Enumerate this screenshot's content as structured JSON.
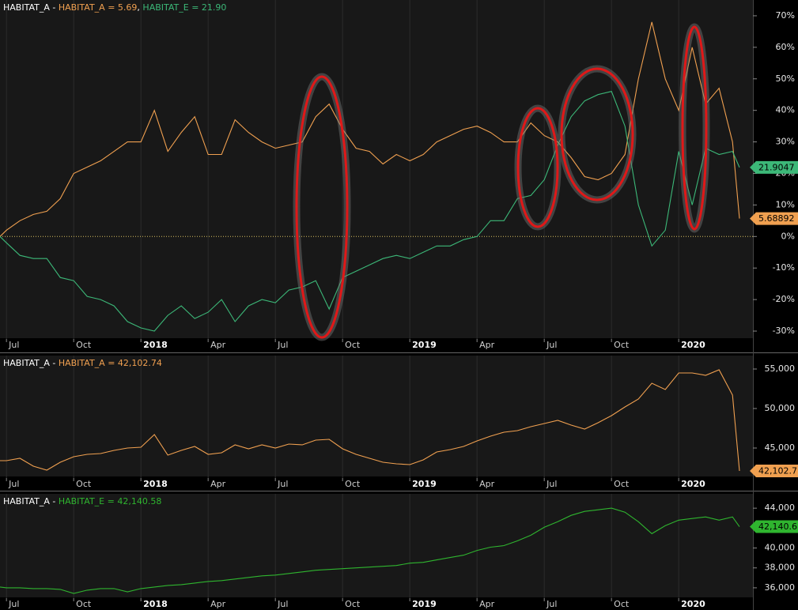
{
  "chart_data": [
    {
      "type": "line",
      "legend_prefix": "HABITAT_A - ",
      "legend_separator": ", ",
      "zero_line": true,
      "x": [
        2017.476,
        2017.5,
        2017.55,
        2017.6,
        2017.65,
        2017.7,
        2017.75,
        2017.8,
        2017.85,
        2017.9,
        2017.95,
        2018,
        2018.05,
        2018.1,
        2018.15,
        2018.2,
        2018.25,
        2018.3,
        2018.35,
        2018.4,
        2018.45,
        2018.5,
        2018.55,
        2018.6,
        2018.65,
        2018.7,
        2018.75,
        2018.8,
        2018.85,
        2018.9,
        2018.95,
        2019,
        2019.05,
        2019.1,
        2019.15,
        2019.2,
        2019.25,
        2019.3,
        2019.35,
        2019.4,
        2019.45,
        2019.5,
        2019.55,
        2019.6,
        2019.65,
        2019.7,
        2019.75,
        2019.8,
        2019.85,
        2019.9,
        2019.95,
        2020,
        2020.05,
        2020.1,
        2020.15,
        2020.2,
        2020.226
      ],
      "series": [
        {
          "name": "HABITAT_A = 5.69",
          "color": "#f0a050",
          "value_label": "5.68892",
          "values": [
            0,
            2,
            5,
            7,
            8,
            12,
            20,
            22,
            24,
            27,
            30,
            30,
            40,
            27,
            33,
            38,
            26,
            26,
            37,
            33,
            30,
            28,
            29,
            30,
            38,
            42,
            34,
            28,
            27,
            23,
            26,
            24,
            26,
            30,
            32,
            34,
            35,
            33,
            30,
            30,
            36,
            32,
            30,
            25,
            19,
            18,
            20,
            26,
            50,
            68,
            50,
            40,
            60,
            42,
            47,
            30,
            5.68892
          ]
        },
        {
          "name": "HABITAT_E = 21.90",
          "color": "#3cb878",
          "value_label": "21.9047",
          "values": [
            0,
            -2,
            -6,
            -7,
            -7,
            -13,
            -14,
            -19,
            -20,
            -22,
            -27,
            -29,
            -30,
            -25,
            -22,
            -26,
            -24,
            -20,
            -27,
            -22,
            -20,
            -21,
            -17,
            -16,
            -14,
            -23,
            -13,
            -11,
            -9,
            -7,
            -6,
            -7,
            -5,
            -3,
            -3,
            -1,
            0,
            5,
            5,
            12,
            13,
            18,
            29,
            38,
            43,
            45,
            46,
            35,
            10,
            -3,
            2,
            27,
            10,
            28,
            26,
            27,
            21.9047
          ]
        }
      ],
      "xlim": [
        2017.476,
        2020.276
      ],
      "xticks": [
        {
          "value": 2017.5,
          "label": "Jul"
        },
        {
          "value": 2017.75,
          "label": "Oct"
        },
        2018,
        {
          "value": 2018.25,
          "label": "Apr"
        },
        {
          "value": 2018.5,
          "label": "Jul"
        },
        {
          "value": 2018.75,
          "label": "Oct"
        },
        2019,
        {
          "value": 2019.25,
          "label": "Apr"
        },
        {
          "value": 2019.5,
          "label": "Jul"
        },
        {
          "value": 2019.75,
          "label": "Oct"
        },
        2020
      ],
      "ylim": [
        -32,
        75
      ],
      "yticks": [
        {
          "value": 70,
          "label": "70%"
        },
        {
          "value": 60,
          "label": "60%"
        },
        {
          "value": 50,
          "label": "50%"
        },
        {
          "value": 40,
          "label": "40%"
        },
        {
          "value": 30,
          "label": "30%"
        },
        {
          "value": 20,
          "label": "20%"
        },
        {
          "value": 10,
          "label": "10%"
        },
        {
          "value": 0,
          "label": "0%"
        },
        {
          "value": -10,
          "label": "-10%"
        },
        {
          "value": -20,
          "label": "-20%"
        },
        {
          "value": -30,
          "label": "-30%"
        }
      ]
    },
    {
      "type": "line",
      "legend_prefix": "HABITAT_A - ",
      "legend_separator": ", ",
      "x": [
        2017.476,
        2017.5,
        2017.55,
        2017.6,
        2017.65,
        2017.7,
        2017.75,
        2017.8,
        2017.85,
        2017.9,
        2017.95,
        2018,
        2018.05,
        2018.1,
        2018.15,
        2018.2,
        2018.25,
        2018.3,
        2018.35,
        2018.4,
        2018.45,
        2018.5,
        2018.55,
        2018.6,
        2018.65,
        2018.7,
        2018.75,
        2018.8,
        2018.85,
        2018.9,
        2018.95,
        2019,
        2019.05,
        2019.1,
        2019.15,
        2019.2,
        2019.25,
        2019.3,
        2019.35,
        2019.4,
        2019.45,
        2019.5,
        2019.55,
        2019.6,
        2019.65,
        2019.7,
        2019.75,
        2019.8,
        2019.85,
        2019.9,
        2019.95,
        2020,
        2020.05,
        2020.1,
        2020.15,
        2020.2,
        2020.226
      ],
      "series": [
        {
          "name": "HABITAT_A = 42,102.74",
          "color": "#f0a050",
          "value_label": "42,102.7",
          "values": [
            43400,
            43400,
            43700,
            42700,
            42200,
            43200,
            43900,
            44200,
            44300,
            44700,
            45000,
            45100,
            46700,
            44100,
            44700,
            45200,
            44200,
            44400,
            45400,
            44900,
            45400,
            45000,
            45500,
            45400,
            46000,
            46100,
            44900,
            44200,
            43700,
            43200,
            43000,
            42900,
            43500,
            44500,
            44800,
            45200,
            45900,
            46500,
            47000,
            47200,
            47700,
            48100,
            48500,
            47900,
            47400,
            48200,
            49100,
            50200,
            51200,
            53200,
            52400,
            54500,
            54500,
            54200,
            54900,
            51700,
            42102.74
          ]
        }
      ],
      "xlim": [
        2017.476,
        2020.276
      ],
      "xticks": [
        {
          "value": 2017.5,
          "label": "Jul"
        },
        {
          "value": 2017.75,
          "label": "Oct"
        },
        2018,
        {
          "value": 2018.25,
          "label": "Apr"
        },
        {
          "value": 2018.5,
          "label": "Jul"
        },
        {
          "value": 2018.75,
          "label": "Oct"
        },
        2019,
        {
          "value": 2019.25,
          "label": "Apr"
        },
        {
          "value": 2019.5,
          "label": "Jul"
        },
        {
          "value": 2019.75,
          "label": "Oct"
        },
        2020
      ],
      "ylim": [
        41400,
        56700
      ],
      "yticks": [
        {
          "value": 55000,
          "label": "55,000"
        },
        {
          "value": 50000,
          "label": "50,000"
        },
        {
          "value": 45000,
          "label": "45,000"
        }
      ]
    },
    {
      "type": "line",
      "legend_prefix": "HABITAT_A - ",
      "legend_separator": ", ",
      "x": [
        2017.476,
        2017.5,
        2017.55,
        2017.6,
        2017.65,
        2017.7,
        2017.75,
        2017.8,
        2017.85,
        2017.9,
        2017.95,
        2018,
        2018.05,
        2018.1,
        2018.15,
        2018.2,
        2018.25,
        2018.3,
        2018.35,
        2018.4,
        2018.45,
        2018.5,
        2018.55,
        2018.6,
        2018.65,
        2018.7,
        2018.75,
        2018.8,
        2018.85,
        2018.9,
        2018.95,
        2019,
        2019.05,
        2019.1,
        2019.15,
        2019.2,
        2019.25,
        2019.3,
        2019.35,
        2019.4,
        2019.45,
        2019.5,
        2019.55,
        2019.6,
        2019.65,
        2019.7,
        2019.75,
        2019.8,
        2019.85,
        2019.9,
        2019.95,
        2020,
        2020.05,
        2020.1,
        2020.15,
        2020.2,
        2020.226
      ],
      "series": [
        {
          "name": "HABITAT_E = 42,140.58",
          "color": "#2fb52f",
          "value_label": "42,140.6",
          "values": [
            36080,
            36000,
            36000,
            35920,
            35920,
            35840,
            35440,
            35760,
            35920,
            35920,
            35600,
            35920,
            36080,
            36240,
            36320,
            36480,
            36640,
            36720,
            36880,
            37040,
            37200,
            37280,
            37440,
            37600,
            37760,
            37840,
            37920,
            38000,
            38080,
            38160,
            38240,
            38480,
            38560,
            38800,
            39040,
            39280,
            39760,
            40080,
            40240,
            40720,
            41280,
            42080,
            42640,
            43280,
            43680,
            43840,
            44000,
            43600,
            42640,
            41440,
            42240,
            42800,
            42960,
            43120,
            42800,
            43120,
            42140.58
          ]
        }
      ],
      "xlim": [
        2017.476,
        2020.276
      ],
      "xticks": [
        {
          "value": 2017.5,
          "label": "Jul"
        },
        {
          "value": 2017.75,
          "label": "Oct"
        },
        2018,
        {
          "value": 2018.25,
          "label": "Apr"
        },
        {
          "value": 2018.5,
          "label": "Jul"
        },
        {
          "value": 2018.75,
          "label": "Oct"
        },
        2019,
        {
          "value": 2019.25,
          "label": "Apr"
        },
        {
          "value": 2019.5,
          "label": "Jul"
        },
        {
          "value": 2019.75,
          "label": "Oct"
        },
        2020
      ],
      "ylim": [
        35120,
        45440
      ],
      "yticks": [
        {
          "value": 44000,
          "label": "44,000"
        },
        {
          "value": 42000,
          "label": "42,000"
        },
        {
          "value": 40000,
          "label": "40,000"
        },
        {
          "value": 38000,
          "label": "38,000"
        },
        {
          "value": 36000,
          "label": "36,000"
        }
      ]
    }
  ]
}
